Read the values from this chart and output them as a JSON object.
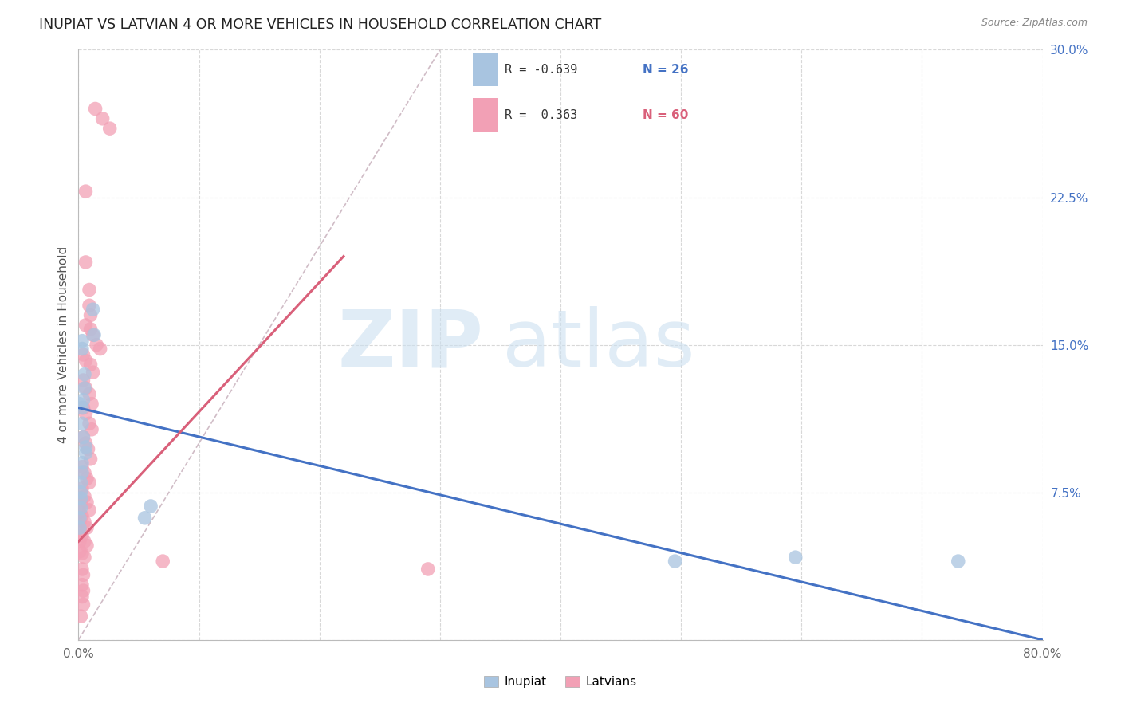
{
  "title": "INUPIAT VS LATVIAN 4 OR MORE VEHICLES IN HOUSEHOLD CORRELATION CHART",
  "source": "Source: ZipAtlas.com",
  "ylabel": "4 or more Vehicles in Household",
  "xlim": [
    0.0,
    0.8
  ],
  "ylim": [
    0.0,
    0.3
  ],
  "xtick_positions": [
    0.0,
    0.1,
    0.2,
    0.3,
    0.4,
    0.5,
    0.6,
    0.7,
    0.8
  ],
  "xticklabels": [
    "0.0%",
    "",
    "",
    "",
    "",
    "",
    "",
    "",
    "80.0%"
  ],
  "ytick_positions": [
    0.0,
    0.075,
    0.15,
    0.225,
    0.3
  ],
  "yticklabels": [
    "",
    "7.5%",
    "15.0%",
    "22.5%",
    "30.0%"
  ],
  "legend_blue_r": "-0.639",
  "legend_blue_n": "26",
  "legend_pink_r": "0.363",
  "legend_pink_n": "60",
  "inupiat_color": "#a8c4e0",
  "latvian_color": "#f2a0b5",
  "inupiat_line_color": "#4472c4",
  "latvian_line_color": "#d9607a",
  "diagonal_color": "#cbb5c0",
  "background_color": "#ffffff",
  "grid_color": "#d8d8d8",
  "inupiat_points": [
    [
      0.001,
      0.12
    ],
    [
      0.012,
      0.168
    ],
    [
      0.013,
      0.155
    ],
    [
      0.003,
      0.152
    ],
    [
      0.003,
      0.148
    ],
    [
      0.005,
      0.135
    ],
    [
      0.005,
      0.128
    ],
    [
      0.004,
      0.122
    ],
    [
      0.003,
      0.118
    ],
    [
      0.003,
      0.11
    ],
    [
      0.004,
      0.103
    ],
    [
      0.006,
      0.098
    ],
    [
      0.006,
      0.095
    ],
    [
      0.003,
      0.09
    ],
    [
      0.003,
      0.085
    ],
    [
      0.002,
      0.08
    ],
    [
      0.002,
      0.075
    ],
    [
      0.002,
      0.072
    ],
    [
      0.002,
      0.067
    ],
    [
      0.001,
      0.062
    ],
    [
      0.001,
      0.057
    ],
    [
      0.06,
      0.068
    ],
    [
      0.055,
      0.062
    ],
    [
      0.495,
      0.04
    ],
    [
      0.595,
      0.042
    ],
    [
      0.73,
      0.04
    ]
  ],
  "latvian_points": [
    [
      0.014,
      0.27
    ],
    [
      0.02,
      0.265
    ],
    [
      0.026,
      0.26
    ],
    [
      0.006,
      0.228
    ],
    [
      0.006,
      0.192
    ],
    [
      0.009,
      0.178
    ],
    [
      0.009,
      0.17
    ],
    [
      0.01,
      0.165
    ],
    [
      0.006,
      0.16
    ],
    [
      0.01,
      0.158
    ],
    [
      0.012,
      0.155
    ],
    [
      0.015,
      0.15
    ],
    [
      0.018,
      0.148
    ],
    [
      0.004,
      0.145
    ],
    [
      0.006,
      0.142
    ],
    [
      0.01,
      0.14
    ],
    [
      0.012,
      0.136
    ],
    [
      0.004,
      0.132
    ],
    [
      0.006,
      0.128
    ],
    [
      0.009,
      0.125
    ],
    [
      0.011,
      0.12
    ],
    [
      0.004,
      0.118
    ],
    [
      0.006,
      0.115
    ],
    [
      0.009,
      0.11
    ],
    [
      0.011,
      0.107
    ],
    [
      0.004,
      0.103
    ],
    [
      0.006,
      0.1
    ],
    [
      0.008,
      0.097
    ],
    [
      0.01,
      0.092
    ],
    [
      0.003,
      0.088
    ],
    [
      0.005,
      0.085
    ],
    [
      0.007,
      0.082
    ],
    [
      0.009,
      0.08
    ],
    [
      0.003,
      0.077
    ],
    [
      0.005,
      0.073
    ],
    [
      0.007,
      0.07
    ],
    [
      0.009,
      0.066
    ],
    [
      0.003,
      0.063
    ],
    [
      0.005,
      0.06
    ],
    [
      0.007,
      0.057
    ],
    [
      0.003,
      0.053
    ],
    [
      0.005,
      0.05
    ],
    [
      0.007,
      0.048
    ],
    [
      0.003,
      0.044
    ],
    [
      0.005,
      0.042
    ],
    [
      0.07,
      0.04
    ],
    [
      0.003,
      0.036
    ],
    [
      0.004,
      0.033
    ],
    [
      0.003,
      0.028
    ],
    [
      0.004,
      0.025
    ],
    [
      0.003,
      0.022
    ],
    [
      0.004,
      0.018
    ],
    [
      0.29,
      0.036
    ],
    [
      0.002,
      0.012
    ],
    [
      0.002,
      0.07
    ],
    [
      0.001,
      0.065
    ],
    [
      0.001,
      0.06
    ],
    [
      0.002,
      0.055
    ],
    [
      0.001,
      0.05
    ],
    [
      0.001,
      0.045
    ]
  ],
  "inupiat_line": {
    "x0": 0.0,
    "y0": 0.118,
    "x1": 0.8,
    "y1": 0.0
  },
  "latvian_line": {
    "x0": 0.0,
    "y0": 0.05,
    "x1": 0.22,
    "y1": 0.195
  }
}
